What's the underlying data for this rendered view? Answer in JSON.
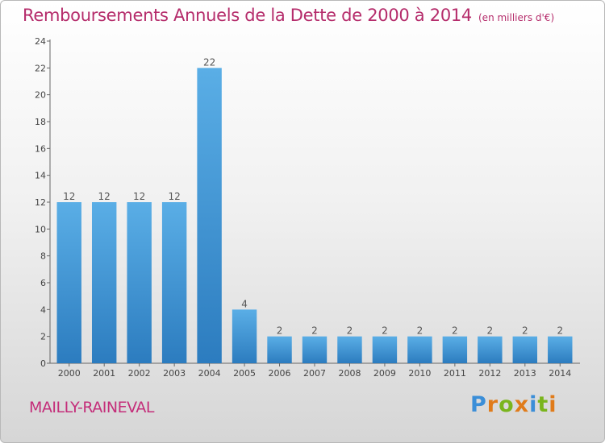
{
  "header": {
    "title": "Remboursements Annuels de la Dette de 2000 à 2014",
    "subtitle": "(en milliers d'€)"
  },
  "footer": {
    "commune": "MAILLY-RAINEVAL",
    "logo_letters": [
      "P",
      "r",
      "o",
      "x",
      "i",
      "t",
      "i"
    ],
    "logo_colors": [
      "#3a8ed8",
      "#e07b1a",
      "#7ab51d",
      "#e07b1a",
      "#3a8ed8",
      "#7ab51d",
      "#e07b1a"
    ]
  },
  "chart_data": {
    "type": "bar",
    "title": "Remboursements Annuels de la Dette de 2000 à 2014",
    "subtitle": "(en milliers d'€)",
    "categories": [
      "2000",
      "2001",
      "2002",
      "2003",
      "2004",
      "2005",
      "2006",
      "2007",
      "2008",
      "2009",
      "2010",
      "2011",
      "2012",
      "2013",
      "2014"
    ],
    "values": [
      12,
      12,
      12,
      12,
      22,
      4,
      2,
      2,
      2,
      2,
      2,
      2,
      2,
      2,
      2
    ],
    "data_labels": [
      "12",
      "12",
      "12",
      "12",
      "22",
      "4",
      "2",
      "2",
      "2",
      "2",
      "2",
      "2",
      "2",
      "2",
      "2"
    ],
    "ylim": [
      0,
      24
    ],
    "yticks": [
      "0",
      "2",
      "4",
      "6",
      "8",
      "10",
      "12",
      "14",
      "16",
      "18",
      "20",
      "22",
      "24"
    ],
    "grid": false,
    "bar_color_light": "#5aaee6",
    "bar_color_dark": "#2c7cbf"
  }
}
